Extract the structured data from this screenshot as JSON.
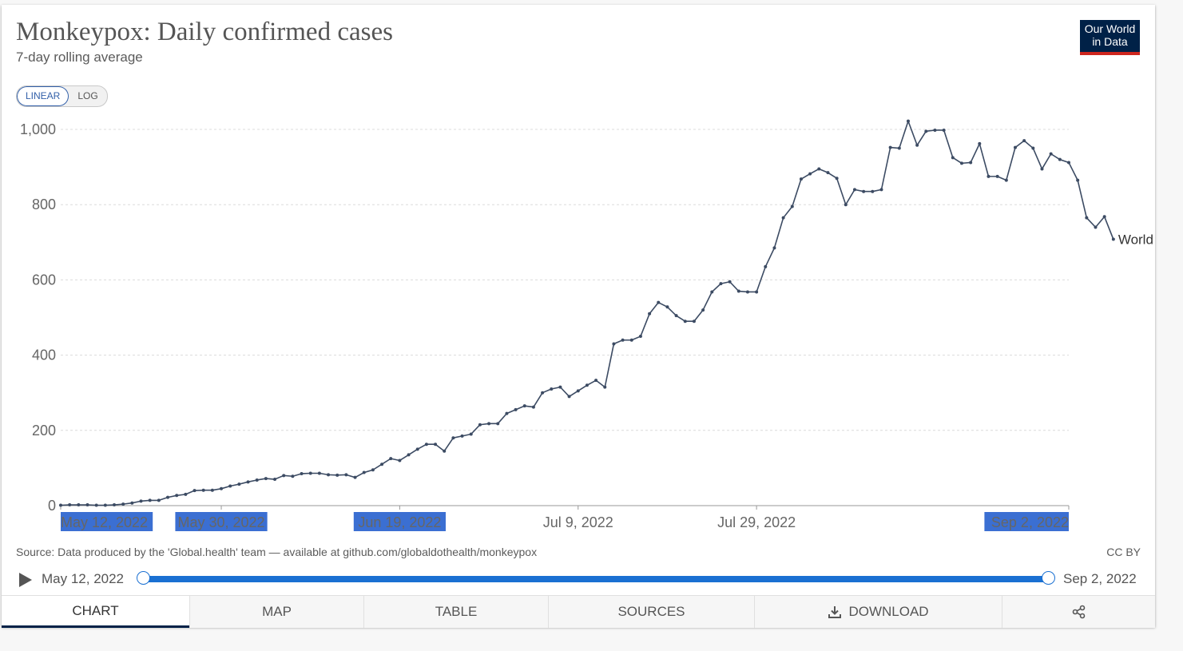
{
  "header": {
    "title": "Monkeypox: Daily confirmed cases",
    "subtitle": "7-day rolling average",
    "logo_line1": "Our World",
    "logo_line2": "in Data"
  },
  "scale_toggle": {
    "options": [
      "LINEAR",
      "LOG"
    ],
    "selected": "LINEAR"
  },
  "footer": {
    "source": "Source: Data produced by the 'Global.health' team — available at github.com/globaldothealth/monkeypox",
    "license": "CC BY"
  },
  "timeline": {
    "start_label": "May 12, 2022",
    "end_label": "Sep 2, 2022",
    "play_icon": "play-icon"
  },
  "tabs": [
    {
      "label": "CHART",
      "active": true
    },
    {
      "label": "MAP"
    },
    {
      "label": "TABLE"
    },
    {
      "label": "SOURCES"
    },
    {
      "label": "DOWNLOAD",
      "icon": "download-icon"
    },
    {
      "label": "",
      "icon": "share-icon"
    }
  ],
  "colors": {
    "line": "#3c4b63",
    "accent": "#1a70d2",
    "logo_bg": "#002147",
    "logo_bar": "#ce261e",
    "selection": "#3b6fd2"
  },
  "chart_data": {
    "type": "line",
    "title": "Monkeypox: Daily confirmed cases",
    "subtitle": "7-day rolling average",
    "x_start": "2022-05-12",
    "x_end": "2022-09-02",
    "ylim": [
      0,
      1000
    ],
    "y_ticks": [
      0,
      200,
      400,
      600,
      800,
      1000
    ],
    "y_tick_labels": [
      "0",
      "200",
      "400",
      "600",
      "800",
      "1,000"
    ],
    "x_tick_labels": [
      "May 12, 2022",
      "May 30, 2022",
      "Jun 19, 2022",
      "Jul 9, 2022",
      "Jul 29, 2022",
      "Sep 2, 2022"
    ],
    "x_tick_dates": [
      "2022-05-12",
      "2022-05-30",
      "2022-06-19",
      "2022-07-09",
      "2022-07-29",
      "2022-09-02"
    ],
    "grid": true,
    "series": [
      {
        "name": "World",
        "values": [
          1,
          2,
          2,
          2,
          1,
          1,
          2,
          4,
          7,
          12,
          14,
          14,
          22,
          27,
          30,
          40,
          41,
          41,
          45,
          52,
          57,
          63,
          68,
          72,
          70,
          80,
          78,
          85,
          86,
          86,
          82,
          81,
          82,
          75,
          88,
          95,
          110,
          125,
          120,
          135,
          150,
          163,
          163,
          145,
          180,
          185,
          190,
          215,
          218,
          218,
          245,
          255,
          265,
          262,
          300,
          310,
          315,
          290,
          305,
          320,
          333,
          315,
          430,
          440,
          440,
          450,
          510,
          540,
          528,
          505,
          490,
          490,
          520,
          568,
          590,
          595,
          570,
          568,
          568,
          635,
          685,
          765,
          795,
          868,
          882,
          895,
          885,
          870,
          800,
          840,
          835,
          835,
          840,
          952,
          950,
          1022,
          958,
          995,
          998,
          998,
          925,
          910,
          912,
          962,
          875,
          875,
          865,
          952,
          970,
          950,
          895,
          935,
          920,
          912,
          865,
          765,
          740,
          768,
          708
        ]
      }
    ]
  }
}
